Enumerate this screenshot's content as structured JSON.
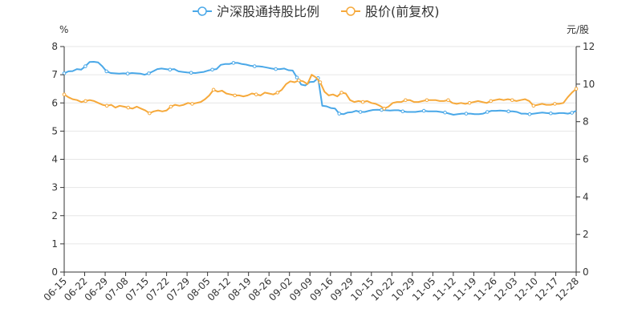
{
  "chart_data": {
    "type": "line",
    "legend": [
      {
        "name": "沪深股通持股比例",
        "color": "#4aa8e8"
      },
      {
        "name": "股价(前复权)",
        "color": "#f6a93b"
      }
    ],
    "left_axis": {
      "unit": "%",
      "min": 0,
      "max": 8,
      "ticks": [
        "0",
        "1",
        "2",
        "3",
        "4",
        "5",
        "6",
        "7",
        "8"
      ]
    },
    "right_axis": {
      "unit": "元/股",
      "min": 0,
      "max": 12,
      "ticks": [
        "0",
        "2",
        "4",
        "6",
        "8",
        "10",
        "12"
      ]
    },
    "x_tick_labels": [
      "06-15",
      "06-22",
      "06-29",
      "07-08",
      "07-15",
      "07-22",
      "07-29",
      "08-05",
      "08-12",
      "08-19",
      "08-26",
      "09-02",
      "09-09",
      "09-16",
      "09-29",
      "10-15",
      "10-22",
      "10-29",
      "11-05",
      "11-12",
      "11-19",
      "11-26",
      "12-03",
      "12-10",
      "12-17",
      "12-28"
    ],
    "series": [
      {
        "name": "沪深股通持股比例",
        "axis": "left",
        "values": [
          7.05,
          7.12,
          7.13,
          7.2,
          7.18,
          7.3,
          7.45,
          7.46,
          7.44,
          7.3,
          7.12,
          7.06,
          7.05,
          7.04,
          7.05,
          7.04,
          7.06,
          7.05,
          7.04,
          7.0,
          7.05,
          7.12,
          7.2,
          7.22,
          7.2,
          7.18,
          7.2,
          7.12,
          7.1,
          7.08,
          7.07,
          7.06,
          7.08,
          7.1,
          7.15,
          7.18,
          7.2,
          7.35,
          7.38,
          7.38,
          7.42,
          7.42,
          7.38,
          7.36,
          7.32,
          7.3,
          7.3,
          7.28,
          7.25,
          7.22,
          7.2,
          7.2,
          7.22,
          7.16,
          7.15,
          6.9,
          6.65,
          6.62,
          6.74,
          6.75,
          6.88,
          5.9,
          5.88,
          5.82,
          5.8,
          5.62,
          5.6,
          5.66,
          5.67,
          5.72,
          5.68,
          5.68,
          5.72,
          5.75,
          5.76,
          5.75,
          5.74,
          5.73,
          5.74,
          5.74,
          5.7,
          5.68,
          5.68,
          5.68,
          5.7,
          5.72,
          5.7,
          5.7,
          5.7,
          5.68,
          5.66,
          5.62,
          5.58,
          5.6,
          5.62,
          5.62,
          5.62,
          5.6,
          5.6,
          5.62,
          5.68,
          5.72,
          5.72,
          5.73,
          5.72,
          5.7,
          5.7,
          5.68,
          5.62,
          5.62,
          5.6,
          5.62,
          5.64,
          5.66,
          5.64,
          5.63,
          5.62,
          5.64,
          5.64,
          5.62,
          5.65,
          5.72
        ]
      },
      {
        "name": "股价(前复权)",
        "axis": "right",
        "values": [
          9.45,
          9.3,
          9.2,
          9.15,
          9.05,
          9.1,
          9.15,
          9.1,
          9.0,
          8.9,
          8.85,
          8.9,
          8.75,
          8.85,
          8.8,
          8.75,
          8.7,
          8.8,
          8.7,
          8.6,
          8.45,
          8.55,
          8.6,
          8.55,
          8.6,
          8.8,
          8.9,
          8.85,
          8.9,
          9.0,
          8.95,
          9.0,
          9.05,
          9.2,
          9.4,
          9.7,
          9.6,
          9.65,
          9.5,
          9.45,
          9.4,
          9.4,
          9.35,
          9.4,
          9.5,
          9.45,
          9.4,
          9.55,
          9.5,
          9.45,
          9.55,
          9.7,
          10.0,
          10.15,
          10.1,
          10.2,
          10.15,
          10.0,
          10.5,
          10.35,
          10.1,
          9.6,
          9.4,
          9.45,
          9.35,
          9.55,
          9.5,
          9.15,
          9.05,
          9.1,
          9.05,
          9.1,
          9.0,
          8.95,
          8.85,
          8.7,
          8.8,
          9.0,
          9.05,
          9.05,
          9.15,
          9.15,
          9.05,
          9.05,
          9.1,
          9.15,
          9.15,
          9.15,
          9.1,
          9.1,
          9.15,
          9.0,
          8.95,
          9.0,
          8.95,
          9.0,
          9.05,
          9.1,
          9.05,
          9.0,
          9.1,
          9.15,
          9.2,
          9.15,
          9.2,
          9.15,
          9.1,
          9.15,
          9.2,
          9.1,
          8.85,
          8.9,
          8.95,
          8.9,
          8.9,
          8.95,
          8.95,
          9.0,
          9.3,
          9.55,
          9.75
        ]
      }
    ]
  }
}
